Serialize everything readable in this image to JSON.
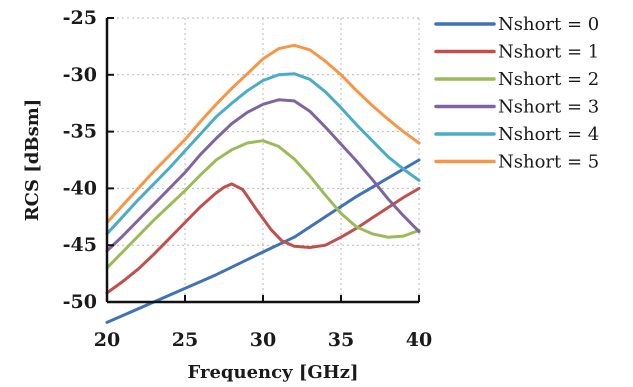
{
  "chart_data": {
    "type": "line",
    "xlabel": "Frequency [GHz]",
    "ylabel": "RCS [dBsm]",
    "xlim": [
      20,
      40
    ],
    "ylim": [
      -50,
      -25
    ],
    "xticks": [
      20,
      25,
      30,
      35,
      40
    ],
    "yticks": [
      -25,
      -30,
      -35,
      -40,
      -45,
      -50
    ],
    "grid": "dashed",
    "legend_position": "right",
    "series": [
      {
        "name": "Nshort = 0",
        "color": "#3f72b7",
        "x": [
          20,
          23,
          25,
          27,
          30,
          32,
          34,
          36,
          38,
          40
        ],
        "y": [
          -51.8,
          -50,
          -48.8,
          -47.6,
          -45.6,
          -44.3,
          -42.5,
          -40.7,
          -39.1,
          -37.5
        ]
      },
      {
        "name": "Nshort = 1",
        "color": "#c0504d",
        "x": [
          20,
          21,
          22,
          23,
          24,
          25,
          26,
          27,
          27.5,
          28,
          28.7,
          29.5,
          30.5,
          31.2,
          32,
          33,
          34,
          35,
          36,
          37,
          38,
          39,
          40
        ],
        "y": [
          -49.2,
          -48.2,
          -47.1,
          -45.8,
          -44.4,
          -43,
          -41.6,
          -40.4,
          -39.9,
          -39.6,
          -40.1,
          -41.7,
          -43.6,
          -44.6,
          -45.1,
          -45.2,
          -45,
          -44.3,
          -43.5,
          -42.6,
          -41.7,
          -40.8,
          -40
        ]
      },
      {
        "name": "Nshort = 2",
        "color": "#9bbb59",
        "x": [
          20,
          21,
          22,
          23,
          24,
          25,
          26,
          27,
          28,
          29,
          30,
          31,
          32,
          33,
          34,
          35,
          36,
          37,
          38,
          39,
          40
        ],
        "y": [
          -47,
          -45.6,
          -44.2,
          -42.8,
          -41.5,
          -40.2,
          -38.8,
          -37.5,
          -36.6,
          -36,
          -35.8,
          -36.3,
          -37.4,
          -38.9,
          -40.6,
          -42.2,
          -43.4,
          -44,
          -44.3,
          -44.2,
          -43.7
        ]
      },
      {
        "name": "Nshort = 3",
        "color": "#8064a2",
        "x": [
          20,
          21,
          22,
          23,
          24,
          25,
          26,
          27,
          28,
          29,
          30,
          31,
          32,
          33,
          34,
          35,
          36,
          37,
          38,
          39,
          40
        ],
        "y": [
          -45.5,
          -44.2,
          -42.8,
          -41.4,
          -40,
          -38.6,
          -37,
          -35.6,
          -34.3,
          -33.3,
          -32.6,
          -32.2,
          -32.3,
          -33.2,
          -34.6,
          -36.1,
          -37.6,
          -39.2,
          -40.9,
          -42.4,
          -43.8
        ]
      },
      {
        "name": "Nshort = 4",
        "color": "#4bacc6",
        "x": [
          20,
          21,
          22,
          23,
          24,
          25,
          26,
          27,
          28,
          29,
          30,
          31,
          32,
          33,
          34,
          35,
          36,
          37,
          38,
          39,
          40
        ],
        "y": [
          -44,
          -42.5,
          -41,
          -39.6,
          -38.2,
          -36.7,
          -35.2,
          -33.7,
          -32.5,
          -31.4,
          -30.5,
          -30,
          -29.9,
          -30.4,
          -31.5,
          -32.9,
          -34.4,
          -35.8,
          -37.2,
          -38.3,
          -39.3
        ]
      },
      {
        "name": "Nshort = 5",
        "color": "#f79646",
        "x": [
          20,
          21,
          22,
          23,
          24,
          25,
          26,
          27,
          28,
          29,
          30,
          31,
          32,
          33,
          34,
          35,
          36,
          37,
          38,
          39,
          40
        ],
        "y": [
          -43,
          -41.5,
          -40,
          -38.5,
          -37.1,
          -35.7,
          -34.1,
          -32.6,
          -31.2,
          -29.9,
          -28.6,
          -27.7,
          -27.4,
          -27.8,
          -28.8,
          -30,
          -31.4,
          -32.7,
          -33.9,
          -35,
          -36
        ]
      }
    ]
  }
}
